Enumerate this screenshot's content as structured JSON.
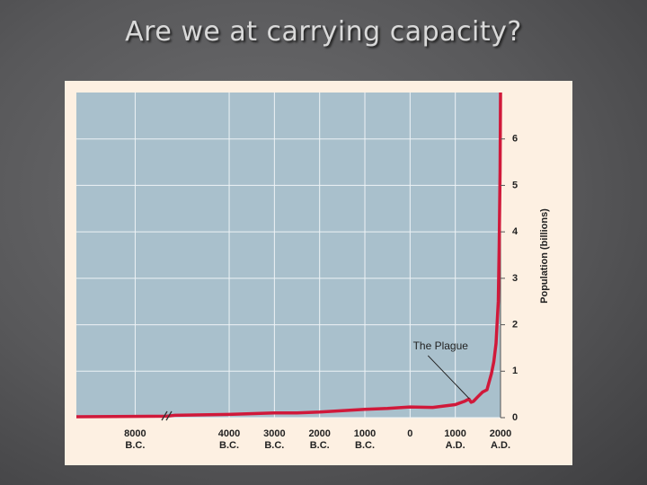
{
  "title": "Are we at carrying capacity?",
  "chart_data": {
    "type": "line",
    "color": "#d0193a",
    "ylabel": "Population (billions)",
    "x": [
      -9300,
      -7300,
      -5200,
      -4000,
      -3000,
      -2500,
      -2000,
      -1500,
      -1000,
      -500,
      0,
      500,
      1000,
      1200,
      1300,
      1350,
      1400,
      1500,
      1600,
      1700,
      1800,
      1850,
      1900,
      1950,
      1970,
      1990,
      2000
    ],
    "values": [
      0.02,
      0.03,
      0.05,
      0.07,
      0.1,
      0.1,
      0.12,
      0.15,
      0.18,
      0.2,
      0.23,
      0.22,
      0.28,
      0.35,
      0.4,
      0.33,
      0.35,
      0.45,
      0.55,
      0.6,
      0.95,
      1.2,
      1.6,
      2.5,
      3.7,
      5.3,
      7
    ],
    "xlim": [
      -9300,
      2000
    ],
    "axis_break": [
      -7300,
      -5200
    ],
    "xticks": [
      {
        "value": -8000,
        "label": "8000 B.C."
      },
      {
        "value": -4000,
        "label": "4000 B.C."
      },
      {
        "value": -3000,
        "label": "3000 B.C."
      },
      {
        "value": -2000,
        "label": "2000 B.C."
      },
      {
        "value": -1000,
        "label": "1000 B.C."
      },
      0,
      {
        "value": 1000,
        "label": "1000 A.D."
      },
      {
        "value": 2000,
        "label": "2000 A.D."
      }
    ],
    "ylim": [
      0,
      7
    ],
    "yticks": [
      0,
      1,
      2,
      3,
      4,
      5,
      6
    ],
    "grid": true,
    "annotations": [
      {
        "text": "The Plague",
        "x": 1350,
        "y": 0.33
      }
    ]
  }
}
